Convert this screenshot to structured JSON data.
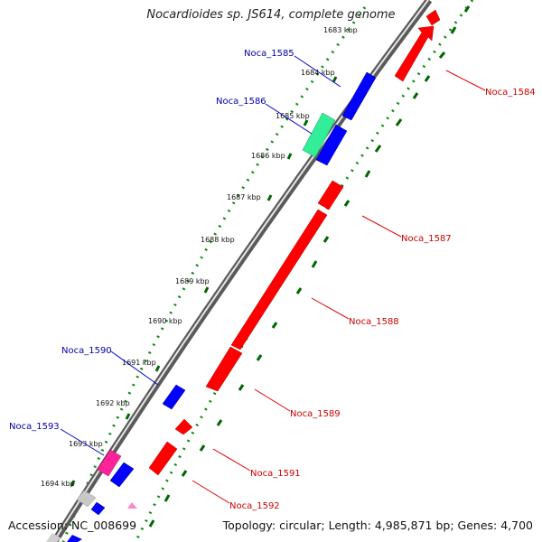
{
  "title": "Nocardioides sp. JS614, complete genome",
  "footer": {
    "accession": "Accession: NC_008699",
    "topology": "Topology: circular; Length: 4,985,871 bp; Genes: 4,700"
  },
  "colors": {
    "forward_strand": "#ff0000",
    "reverse_strand": "#0000ff",
    "forward_label": "#cc0000",
    "reverse_label": "#0000aa",
    "rna_green": "#33ee99",
    "pink": "#ff3399",
    "grey": "#c8c8c8",
    "tick_dots": "#008800"
  },
  "ticks": [
    "1683 kbp",
    "1684 kbp",
    "1685 kbp",
    "1686 kbp",
    "1687 kbp",
    "1688 kbp",
    "1689 kbp",
    "1690 kbp",
    "1691 kbp",
    "1692 kbp",
    "1693 kbp",
    "1694 kbp"
  ],
  "genes_forward": [
    "Noca_1584",
    "Noca_1587",
    "Noca_1588",
    "Noca_1589",
    "Noca_1591",
    "Noca_1592"
  ],
  "genes_reverse": [
    "Noca_1585",
    "Noca_1586",
    "Noca_1590",
    "Noca_1593"
  ]
}
